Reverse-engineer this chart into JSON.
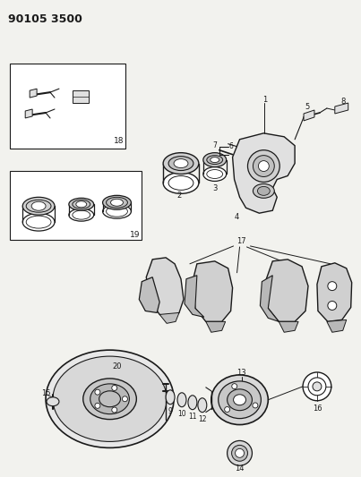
{
  "title": "90105 3500",
  "bg_color": "#f2f2ee",
  "line_color": "#1a1a1a",
  "white": "#ffffff",
  "gray_fill": "#c8c8c8",
  "light_gray": "#e0e0e0"
}
